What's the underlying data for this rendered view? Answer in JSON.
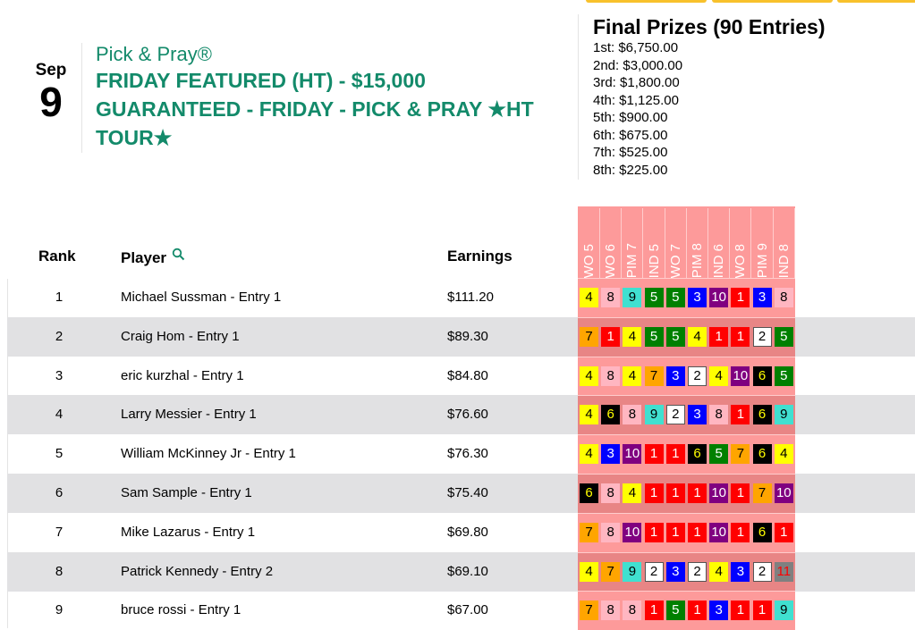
{
  "event": {
    "month": "Sep",
    "day": "9",
    "subtitle": "Pick & Pray®",
    "title": "FRIDAY FEATURED (HT) - $15,000 GUARANTEED - FRIDAY - PICK & PRAY ★HT TOUR★"
  },
  "prizes": {
    "heading": "Final Prizes (90 Entries)",
    "list": [
      "1st: $6,750.00",
      "2nd: $3,000.00",
      "3rd: $1,800.00",
      "4th: $1,125.00",
      "5th: $900.00",
      "6th: $675.00",
      "7th: $525.00",
      "8th: $225.00"
    ]
  },
  "table": {
    "headers": {
      "rank": "Rank",
      "player": "Player",
      "earnings": "Earnings"
    },
    "races": [
      "WO 5",
      "WO 6",
      "PIM 7",
      "IND 5",
      "WO 7",
      "PIM 8",
      "IND 6",
      "WO 8",
      "PIM 9",
      "IND 8"
    ],
    "rows": [
      {
        "rank": "1",
        "player": "Michael Sussman - Entry 1",
        "earnings": "$111.20",
        "picks": [
          4,
          8,
          9,
          5,
          5,
          3,
          10,
          1,
          3,
          8
        ]
      },
      {
        "rank": "2",
        "player": "Craig Hom - Entry 1",
        "earnings": "$89.30",
        "picks": [
          7,
          1,
          4,
          5,
          5,
          4,
          1,
          1,
          2,
          5
        ]
      },
      {
        "rank": "3",
        "player": "eric kurzhal - Entry 1",
        "earnings": "$84.80",
        "picks": [
          4,
          8,
          4,
          7,
          3,
          2,
          4,
          10,
          6,
          5
        ]
      },
      {
        "rank": "4",
        "player": "Larry Messier - Entry 1",
        "earnings": "$76.60",
        "picks": [
          4,
          6,
          8,
          9,
          2,
          3,
          8,
          1,
          6,
          9
        ]
      },
      {
        "rank": "5",
        "player": "William McKinney Jr - Entry 1",
        "earnings": "$76.30",
        "picks": [
          4,
          3,
          10,
          1,
          1,
          6,
          5,
          7,
          6,
          4
        ]
      },
      {
        "rank": "6",
        "player": "Sam Sample - Entry 1",
        "earnings": "$75.40",
        "picks": [
          6,
          8,
          4,
          1,
          1,
          1,
          10,
          1,
          7,
          10
        ]
      },
      {
        "rank": "7",
        "player": "Mike Lazarus - Entry 1",
        "earnings": "$69.80",
        "picks": [
          7,
          8,
          10,
          1,
          1,
          1,
          10,
          1,
          6,
          1
        ]
      },
      {
        "rank": "8",
        "player": "Patrick Kennedy - Entry 2",
        "earnings": "$69.10",
        "picks": [
          4,
          7,
          9,
          2,
          3,
          2,
          4,
          3,
          2,
          11
        ]
      },
      {
        "rank": "9",
        "player": "bruce rossi - Entry 1",
        "earnings": "$67.00",
        "picks": [
          7,
          8,
          8,
          1,
          5,
          1,
          3,
          1,
          1,
          9
        ]
      }
    ]
  },
  "saddlecloth_colors": {
    "1": [
      "#ff0000",
      "#ffffff"
    ],
    "2": [
      "#ffffff",
      "#000000"
    ],
    "3": [
      "#0000ff",
      "#ffffff"
    ],
    "4": [
      "#ffff00",
      "#000000"
    ],
    "5": [
      "#008000",
      "#ffffff"
    ],
    "6": [
      "#000000",
      "#ffff00"
    ],
    "7": [
      "#ffa500",
      "#000000"
    ],
    "8": [
      "#ffb6c1",
      "#000000"
    ],
    "9": [
      "#40e0d0",
      "#000000"
    ],
    "10": [
      "#800080",
      "#ffffff"
    ],
    "11": [
      "#808080",
      "#ff0000"
    ]
  },
  "accent": "#138a6a"
}
